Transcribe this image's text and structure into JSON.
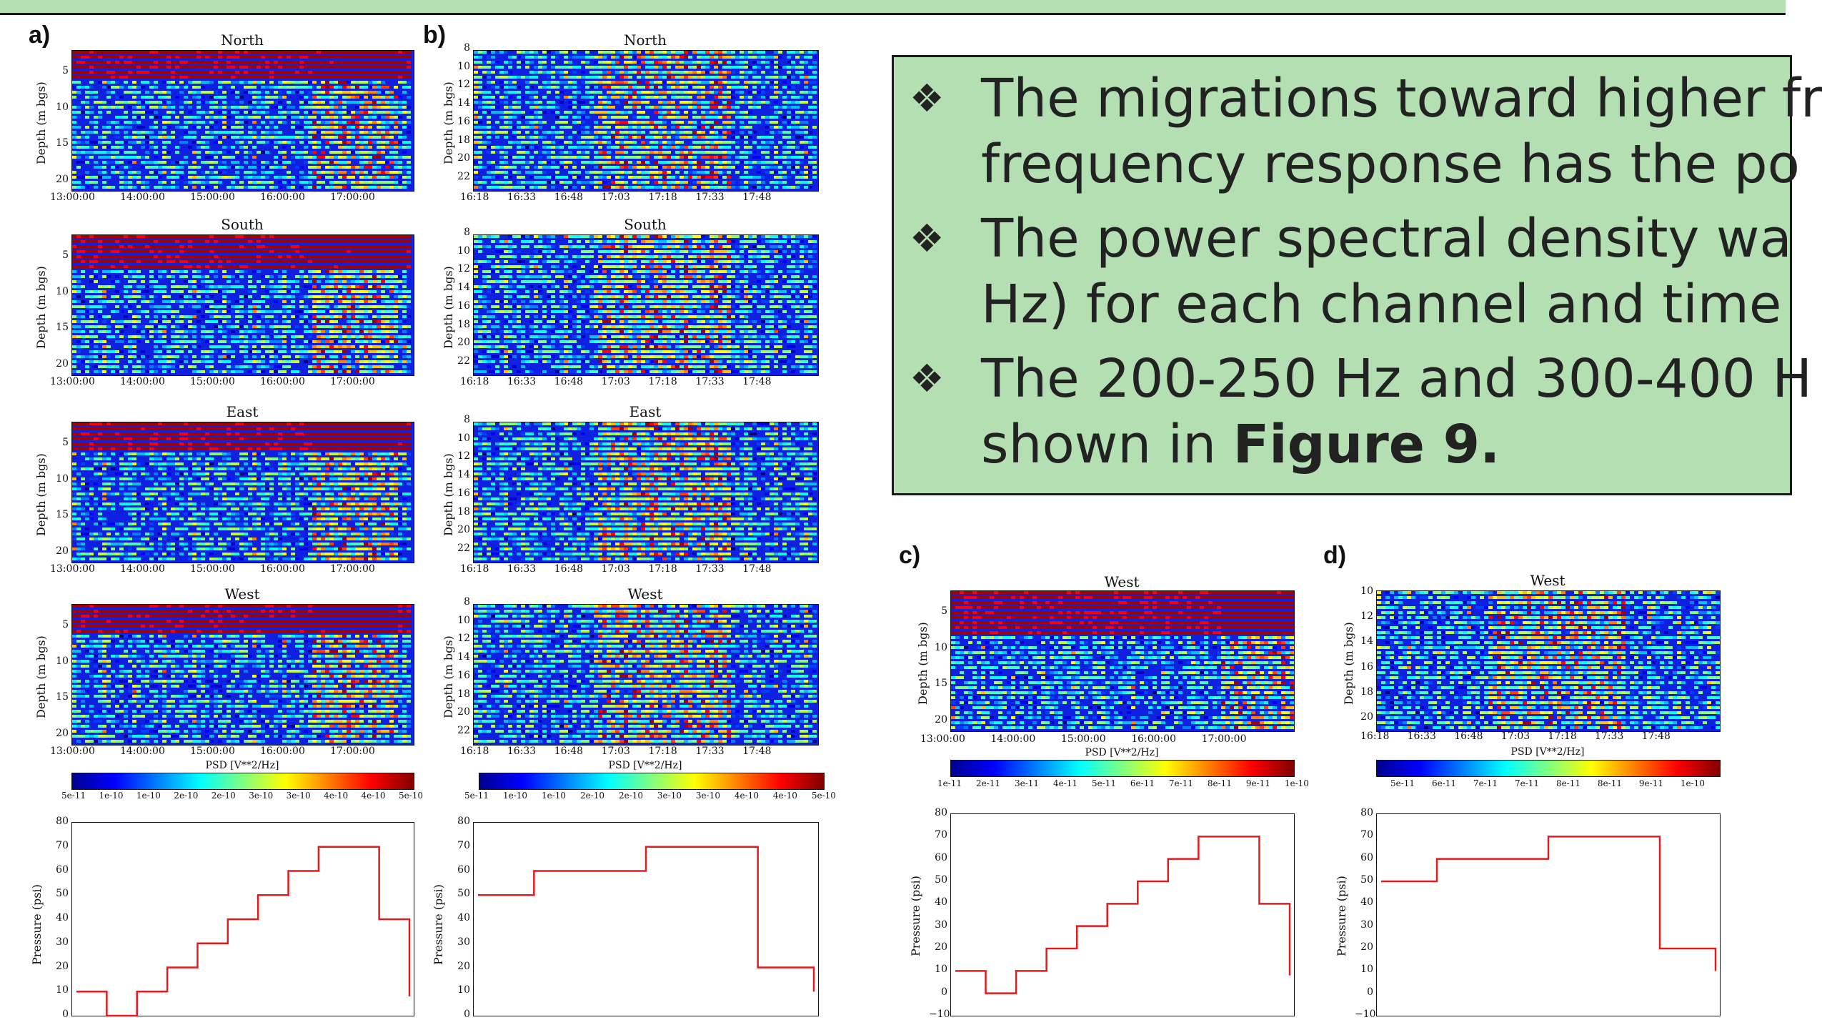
{
  "panel_labels": {
    "a": "a)",
    "b": "b)",
    "c": "c)",
    "d": "d)"
  },
  "bullets": [
    {
      "line1": "The migrations toward higher fr",
      "line2": "frequency response has the po"
    },
    {
      "line1": "The power spectral density wa",
      "line2": "Hz) for each channel and time"
    },
    {
      "line1": "The 200-250 Hz and 300-400 H",
      "line2_prefix": "shown in ",
      "line2_bold": "Figure 9."
    }
  ],
  "bullet_symbol": "❖",
  "depth_label": "Depth (m bgs)",
  "pressure_label": "Pressure (psi)",
  "psd_label": "PSD [V**2/Hz]",
  "titles": {
    "north": "North",
    "south": "South",
    "east": "East",
    "west": "West"
  },
  "ticks": {
    "a_time": [
      "13:00:00",
      "14:00:00",
      "15:00:00",
      "16:00:00",
      "17:00:00"
    ],
    "b_time": [
      "16:18",
      "16:33",
      "16:48",
      "17:03",
      "17:18",
      "17:33",
      "17:48"
    ],
    "a_depth": [
      "5",
      "10",
      "15",
      "20"
    ],
    "b_depth": [
      "8",
      "10",
      "12",
      "14",
      "16",
      "18",
      "20",
      "22"
    ],
    "d_depth": [
      "10",
      "12",
      "14",
      "16",
      "18",
      "20"
    ],
    "pressure": [
      "80",
      "70",
      "60",
      "50",
      "40",
      "30",
      "20",
      "10",
      "0"
    ],
    "pressure_c": [
      "80",
      "70",
      "60",
      "50",
      "40",
      "30",
      "20",
      "10",
      "0",
      "−10"
    ],
    "cbar_a": [
      "5e-11",
      "1e-10",
      "1e-10",
      "2e-10",
      "2e-10",
      "3e-10",
      "3e-10",
      "4e-10",
      "4e-10",
      "5e-10"
    ],
    "cbar_b": [
      "5e-11",
      "1e-10",
      "1e-10",
      "2e-10",
      "2e-10",
      "3e-10",
      "3e-10",
      "4e-10",
      "4e-10",
      "5e-10"
    ],
    "cbar_c": [
      "1e-11",
      "2e-11",
      "3e-11",
      "4e-11",
      "5e-11",
      "6e-11",
      "7e-11",
      "8e-11",
      "9e-11",
      "1e-10"
    ],
    "cbar_d": [
      "5e-11",
      "6e-11",
      "7e-11",
      "7e-11",
      "8e-11",
      "8e-11",
      "9e-11",
      "1e-10"
    ]
  },
  "chart_data": [
    {
      "panel": "a",
      "type": "line",
      "ylabel": "Pressure (psi)",
      "ylim": [
        0,
        80
      ],
      "x": [
        "13:00",
        "13:10",
        "13:40",
        "14:20",
        "14:50",
        "15:20",
        "15:45",
        "16:15",
        "16:45",
        "17:00",
        "17:20",
        "17:40"
      ],
      "values": [
        10,
        0,
        10,
        20,
        30,
        40,
        50,
        60,
        70,
        70,
        40,
        8
      ]
    },
    {
      "panel": "b",
      "type": "line",
      "ylabel": "Pressure (psi)",
      "ylim": [
        0,
        80
      ],
      "x": [
        "16:18",
        "16:25",
        "16:50",
        "17:05",
        "17:20",
        "17:35",
        "17:48"
      ],
      "values": [
        50,
        60,
        60,
        70,
        70,
        20,
        10
      ]
    },
    {
      "panel": "c",
      "type": "line",
      "ylabel": "Pressure (psi)",
      "ylim": [
        -10,
        80
      ],
      "x": [
        "13:00",
        "13:10",
        "13:40",
        "14:20",
        "14:50",
        "15:20",
        "15:45",
        "16:15",
        "16:45",
        "17:00",
        "17:20",
        "17:40"
      ],
      "values": [
        10,
        0,
        10,
        20,
        30,
        40,
        50,
        60,
        70,
        70,
        40,
        8
      ]
    },
    {
      "panel": "d",
      "type": "line",
      "ylabel": "Pressure (psi)",
      "ylim": [
        -10,
        80
      ],
      "x": [
        "16:18",
        "16:25",
        "16:50",
        "17:05",
        "17:20",
        "17:35",
        "17:48"
      ],
      "values": [
        50,
        60,
        60,
        70,
        70,
        20,
        10
      ]
    }
  ]
}
